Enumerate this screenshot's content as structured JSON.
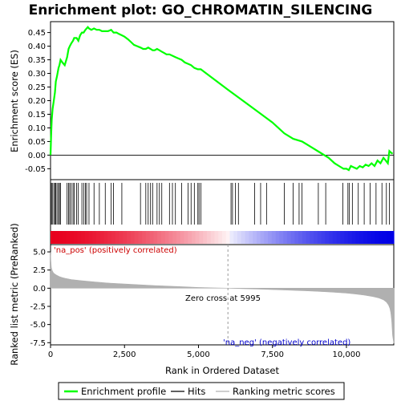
{
  "chart_data": {
    "type": "line",
    "title": "Enrichment plot: GO_CHROMATIN_SILENCING",
    "n_genes": 11600,
    "xlim": [
      0,
      11600
    ],
    "x_ticks": [
      0,
      2500,
      5000,
      7500,
      10000
    ],
    "x_tick_labels": [
      "0",
      "2,500",
      "5,000",
      "7,500",
      "10,000"
    ],
    "xlabel": "Rank in Ordered Dataset",
    "top_panel": {
      "ylabel": "Enrichment score (ES)",
      "ylim": [
        -0.09,
        0.49
      ],
      "y_ticks": [
        -0.05,
        0.0,
        0.05,
        0.1,
        0.15,
        0.2,
        0.25,
        0.3,
        0.35,
        0.4,
        0.45
      ],
      "y_tick_labels": [
        "-0.05",
        "0.00",
        "0.05",
        "0.10",
        "0.15",
        "0.20",
        "0.25",
        "0.30",
        "0.35",
        "0.40",
        "0.45"
      ],
      "series": [
        {
          "name": "Enrichment profile",
          "color": "#00ff00",
          "x": [
            0,
            20,
            40,
            70,
            110,
            150,
            180,
            220,
            270,
            300,
            340,
            400,
            480,
            560,
            610,
            650,
            700,
            760,
            800,
            880,
            940,
            1000,
            1060,
            1120,
            1180,
            1220,
            1260,
            1300,
            1380,
            1470,
            1560,
            1650,
            1740,
            1850,
            1940,
            2050,
            2130,
            2230,
            2310,
            2410,
            2500,
            2620,
            2720,
            2820,
            2930,
            3040,
            3130,
            3220,
            3300,
            3380,
            3450,
            3520,
            3600,
            3680,
            3760,
            3840,
            3920,
            4020,
            4120,
            4220,
            4320,
            4430,
            4540,
            4650,
            4750,
            4860,
            4980,
            5080,
            5995,
            6500,
            7000,
            7500,
            7900,
            8200,
            8500,
            8800,
            9100,
            9400,
            9600,
            9750,
            9900,
            10000,
            10080,
            10150,
            10250,
            10350,
            10450,
            10550,
            10650,
            10750,
            10850,
            10950,
            11050,
            11150,
            11250,
            11330,
            11400,
            11450,
            11500,
            11560
          ],
          "y": [
            0.0,
            0.07,
            0.13,
            0.17,
            0.2,
            0.23,
            0.27,
            0.29,
            0.32,
            0.33,
            0.35,
            0.34,
            0.33,
            0.36,
            0.39,
            0.4,
            0.41,
            0.42,
            0.43,
            0.43,
            0.42,
            0.44,
            0.45,
            0.45,
            0.46,
            0.465,
            0.47,
            0.465,
            0.46,
            0.465,
            0.46,
            0.46,
            0.455,
            0.455,
            0.455,
            0.46,
            0.45,
            0.45,
            0.445,
            0.44,
            0.435,
            0.425,
            0.415,
            0.405,
            0.4,
            0.395,
            0.39,
            0.39,
            0.395,
            0.39,
            0.385,
            0.385,
            0.39,
            0.385,
            0.38,
            0.375,
            0.37,
            0.37,
            0.365,
            0.36,
            0.355,
            0.35,
            0.34,
            0.335,
            0.33,
            0.32,
            0.315,
            0.315,
            0.24,
            0.2,
            0.16,
            0.12,
            0.08,
            0.06,
            0.05,
            0.03,
            0.01,
            -0.01,
            -0.03,
            -0.04,
            -0.05,
            -0.05,
            -0.055,
            -0.04,
            -0.045,
            -0.05,
            -0.04,
            -0.045,
            -0.035,
            -0.04,
            -0.03,
            -0.04,
            -0.02,
            -0.03,
            -0.01,
            -0.02,
            -0.03,
            0.015,
            0.01,
            0.005
          ]
        }
      ]
    },
    "hits": {
      "name": "Hits",
      "color": "#000000",
      "positions": [
        30,
        60,
        110,
        150,
        180,
        220,
        270,
        300,
        340,
        560,
        610,
        650,
        700,
        760,
        800,
        880,
        940,
        1060,
        1120,
        1180,
        1220,
        1300,
        1470,
        1650,
        1850,
        2050,
        2130,
        2410,
        3040,
        3220,
        3300,
        3380,
        3450,
        3600,
        3680,
        3760,
        4020,
        4120,
        4220,
        4430,
        4650,
        4750,
        4860,
        4980,
        5020,
        5080,
        6100,
        6150,
        6250,
        6350,
        6900,
        7100,
        7300,
        7900,
        8200,
        8400,
        8500,
        9050,
        9300,
        9880,
        10050,
        10100,
        10200,
        10400,
        10600,
        10800,
        11000,
        11200,
        11350,
        11450
      ]
    },
    "rank_bar": {
      "positive_color": "#e8001e",
      "negative_color": "#0000e6",
      "zero_cross_rank": 5995
    },
    "bottom_panel": {
      "name": "Ranking metric scores",
      "fill_color": "#b0b0b0",
      "ylabel": "Ranked list metric (PreRanked)",
      "ylim": [
        -7.8,
        6.0
      ],
      "y_ticks": [
        -7.5,
        -5.0,
        -2.5,
        0.0,
        2.5,
        5.0
      ],
      "y_tick_labels": [
        "-7.5",
        "-5.0",
        "-2.5",
        "0.0",
        "2.5",
        "5.0"
      ],
      "x": [
        0,
        10,
        30,
        60,
        100,
        150,
        200,
        300,
        400,
        500,
        700,
        1000,
        1500,
        2000,
        2500,
        3000,
        3500,
        4000,
        4500,
        5000,
        5500,
        5995,
        6500,
        7000,
        7500,
        8000,
        8500,
        9000,
        9500,
        10000,
        10300,
        10600,
        10900,
        11100,
        11250,
        11350,
        11420,
        11470,
        11500,
        11530,
        11560,
        11600
      ],
      "y": [
        5.0,
        3.8,
        2.8,
        2.4,
        2.1,
        1.95,
        1.8,
        1.6,
        1.45,
        1.35,
        1.2,
        1.05,
        0.85,
        0.7,
        0.58,
        0.47,
        0.37,
        0.28,
        0.19,
        0.11,
        0.05,
        0.0,
        -0.06,
        -0.12,
        -0.19,
        -0.26,
        -0.34,
        -0.43,
        -0.54,
        -0.68,
        -0.8,
        -0.95,
        -1.15,
        -1.35,
        -1.6,
        -1.9,
        -2.3,
        -2.8,
        -3.4,
        -4.5,
        -6.5,
        -7.6
      ]
    },
    "annotations": {
      "positive_label": "'na_pos' (positively correlated)",
      "negative_label": "'na_neg' (negatively correlated)",
      "zero_cross_text": "Zero cross at 5995",
      "positive_color": "#cc0000",
      "negative_color": "#0000cc"
    },
    "legend": {
      "placement": "bottom",
      "entries": [
        {
          "label": "Enrichment profile",
          "color": "#00ff00",
          "kind": "line"
        },
        {
          "label": "Hits",
          "color": "#000000",
          "kind": "line"
        },
        {
          "label": "Ranking metric scores",
          "color": "#b0b0b0",
          "kind": "line"
        }
      ]
    }
  }
}
